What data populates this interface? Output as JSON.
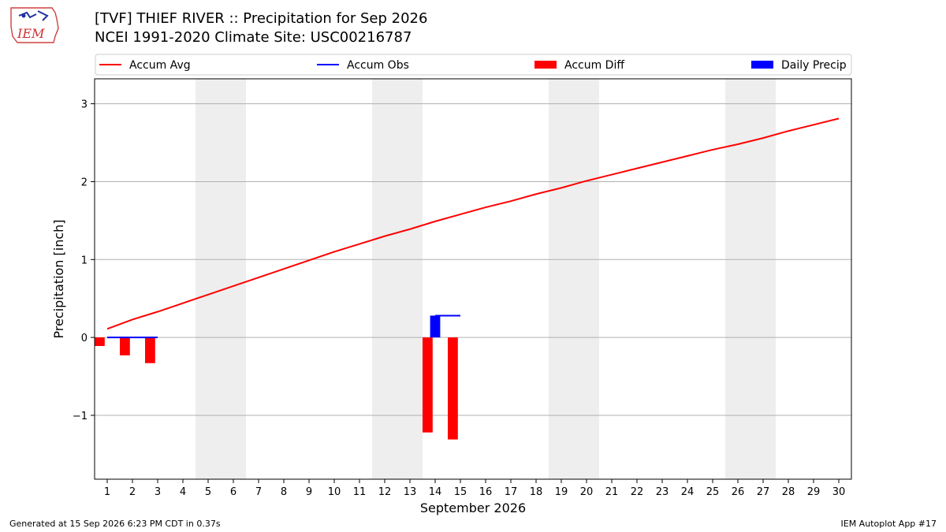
{
  "header": {
    "logo_text": "IEM",
    "title_line1": "[TVF] THIEF RIVER :: Precipitation for Sep 2026",
    "title_line2": "NCEI 1991-2020 Climate Site: USC00216787"
  },
  "footer": {
    "generated": "Generated at 15 Sep 2026 6:23 PM CDT in 0.37s",
    "app": "IEM Autoplot App #17"
  },
  "colors": {
    "avg": "#ff0000",
    "obs": "#0000ff",
    "diff": "#ff0000",
    "daily": "#0000ff",
    "weekend_shade": "#eeeeee",
    "grid": "#b0b0b0"
  },
  "chart_data": {
    "type": "bar",
    "xlabel": "September 2026",
    "ylabel": "Precipitation [inch]",
    "ylim": [
      -1.82,
      3.32
    ],
    "yticks": [
      3,
      2,
      1,
      0,
      -1
    ],
    "ytick_labels": [
      "3",
      "2",
      "1",
      "0",
      "−1"
    ],
    "days": [
      1,
      2,
      3,
      4,
      5,
      6,
      7,
      8,
      9,
      10,
      11,
      12,
      13,
      14,
      15,
      16,
      17,
      18,
      19,
      20,
      21,
      22,
      23,
      24,
      25,
      26,
      27,
      28,
      29,
      30
    ],
    "weekend_spans": [
      [
        5,
        6
      ],
      [
        12,
        13
      ],
      [
        19,
        20
      ],
      [
        26,
        27
      ]
    ],
    "grid": "horizontal",
    "legend_position": "top",
    "legend": [
      "Accum Avg",
      "Accum Obs",
      "Accum Diff",
      "Daily Precip"
    ],
    "series": [
      {
        "name": "Accum Avg",
        "kind": "line",
        "x": [
          1,
          2,
          3,
          4,
          5,
          6,
          7,
          8,
          9,
          10,
          11,
          12,
          13,
          14,
          15,
          16,
          17,
          18,
          19,
          20,
          21,
          22,
          23,
          24,
          25,
          26,
          27,
          28,
          29,
          30
        ],
        "values": [
          0.11,
          0.23,
          0.33,
          0.44,
          0.55,
          0.66,
          0.77,
          0.88,
          0.99,
          1.1,
          1.2,
          1.3,
          1.39,
          1.49,
          1.58,
          1.67,
          1.75,
          1.84,
          1.92,
          2.01,
          2.09,
          2.17,
          2.25,
          2.33,
          2.41,
          2.48,
          2.56,
          2.65,
          2.73,
          2.81
        ]
      },
      {
        "name": "Accum Obs",
        "kind": "line",
        "x": [
          1,
          2,
          3,
          4,
          5,
          6,
          7,
          8,
          9,
          10,
          11,
          12,
          13,
          14,
          15
        ],
        "values": [
          0,
          0,
          0,
          null,
          null,
          null,
          null,
          null,
          null,
          null,
          null,
          null,
          null,
          0.28,
          0.28
        ]
      },
      {
        "name": "Accum Diff",
        "kind": "bar",
        "x": [
          1,
          2,
          3,
          14,
          15
        ],
        "values": [
          -0.11,
          -0.23,
          -0.33,
          -1.22,
          -1.31
        ]
      },
      {
        "name": "Daily Precip",
        "kind": "bar",
        "x": [
          14
        ],
        "values": [
          0.28
        ]
      }
    ]
  }
}
